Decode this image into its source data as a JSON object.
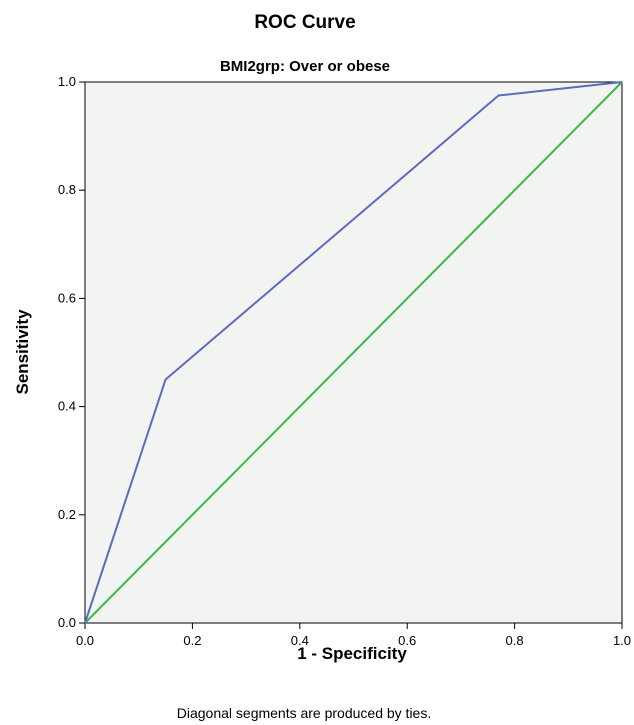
{
  "chart_data": {
    "type": "line",
    "title": "ROC Curve",
    "subtitle": "BMI2grp: Over or obese",
    "xlabel": "1 - Specificity",
    "ylabel": "Sensitivity",
    "footnote": "Diagonal segments are produced by ties.",
    "xlim": [
      0,
      1
    ],
    "ylim": [
      0,
      1
    ],
    "xticks": [
      "0.0",
      "0.2",
      "0.4",
      "0.6",
      "0.8",
      "1.0"
    ],
    "yticks": [
      "0.0",
      "0.2",
      "0.4",
      "0.6",
      "0.8",
      "1.0"
    ],
    "grid": false,
    "series": [
      {
        "color": "#5b6bbf",
        "x": [
          0,
          0.15,
          0.77,
          1.0
        ],
        "y": [
          0,
          0.45,
          0.975,
          1.0
        ]
      },
      {
        "color": "#3cb84a",
        "x": [
          0,
          1.0
        ],
        "y": [
          0,
          1.0
        ]
      }
    ],
    "plot_background": "#f2f4f2"
  }
}
